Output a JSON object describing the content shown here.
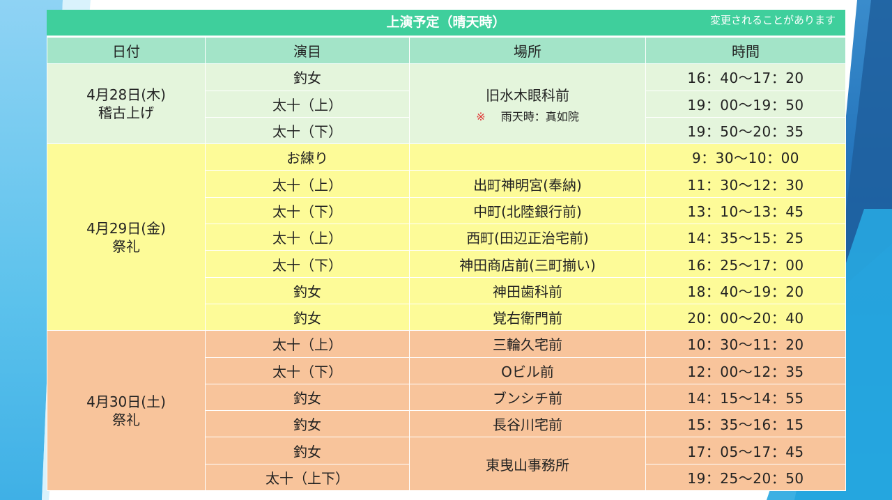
{
  "title": "上演予定（晴天時）",
  "note": "変更されることがあります",
  "headers": [
    "日付",
    "演目",
    "場所",
    "時間"
  ],
  "days": [
    {
      "date": "4月28日(木)",
      "event": "稽古上げ",
      "rows": [
        {
          "program": "釣女",
          "time": "16：40～17：20"
        },
        {
          "program": "太十（上）",
          "time": "19：00～19：50"
        },
        {
          "program": "太十（下）",
          "time": "19：50～20：35"
        }
      ],
      "place": "旧水木眼科前",
      "place_note_mark": "※",
      "place_note": "雨天時：真如院"
    },
    {
      "date": "4月29日(金)",
      "event": "祭礼",
      "rows": [
        {
          "program": "お練り",
          "place": "",
          "time": "9：30～10：00"
        },
        {
          "program": "太十（上）",
          "place": "出町神明宮(奉納)",
          "time": "11：30～12：30"
        },
        {
          "program": "太十（下）",
          "place": "中町(北陸銀行前)",
          "time": "13：10～13：45"
        },
        {
          "program": "太十（上）",
          "place": "西町(田辺正治宅前)",
          "time": "14：35～15：25"
        },
        {
          "program": "太十（下）",
          "place": "神田商店前(三町揃い)",
          "time": "16：25～17：00"
        },
        {
          "program": "釣女",
          "place": "神田歯科前",
          "time": "18：40～19：20"
        },
        {
          "program": "釣女",
          "place": "覚右衛門前",
          "time": "20：00～20：40"
        }
      ]
    },
    {
      "date": "4月30日(土)",
      "event": "祭礼",
      "rows": [
        {
          "program": "太十（上）",
          "place": "三輪久宅前",
          "time": "10：30～11：20"
        },
        {
          "program": "太十（下）",
          "place": "Oビル前",
          "time": "12：00～12：35"
        },
        {
          "program": "釣女",
          "place": "ブンシチ前",
          "time": "14：15～14：55"
        },
        {
          "program": "釣女",
          "place": "長谷川宅前",
          "time": "15：35～16：15"
        },
        {
          "program": "釣女",
          "time": "17：05～17：45"
        },
        {
          "program": "太十（上下）",
          "time": "19：25～20：50"
        }
      ],
      "shared_place": "東曳山事務所"
    }
  ],
  "colors": {
    "title_bar": "#3fcf9c",
    "header": "#a3e4c8",
    "day1": "#e4f5dc",
    "day2": "#fdfb98",
    "day3": "#f8c49b"
  }
}
